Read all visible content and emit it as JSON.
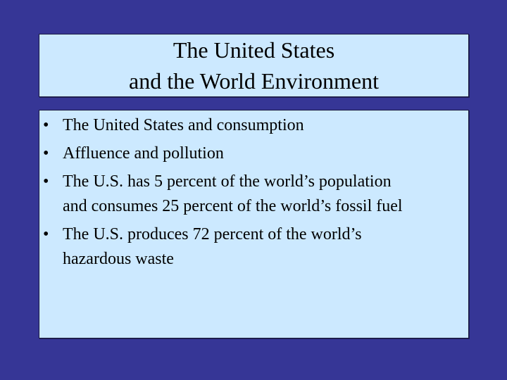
{
  "title": [
    "The United States",
    "and the World Environment"
  ],
  "bullets": [
    [
      "The United States and consumption"
    ],
    [
      "Affluence and pollution"
    ],
    [
      "The U.S. has 5 percent of the world’s population",
      "and consumes 25 percent of the world’s fossil fuel"
    ],
    [
      "The U.S. produces 72 percent of the world’s",
      "hazardous waste"
    ]
  ]
}
